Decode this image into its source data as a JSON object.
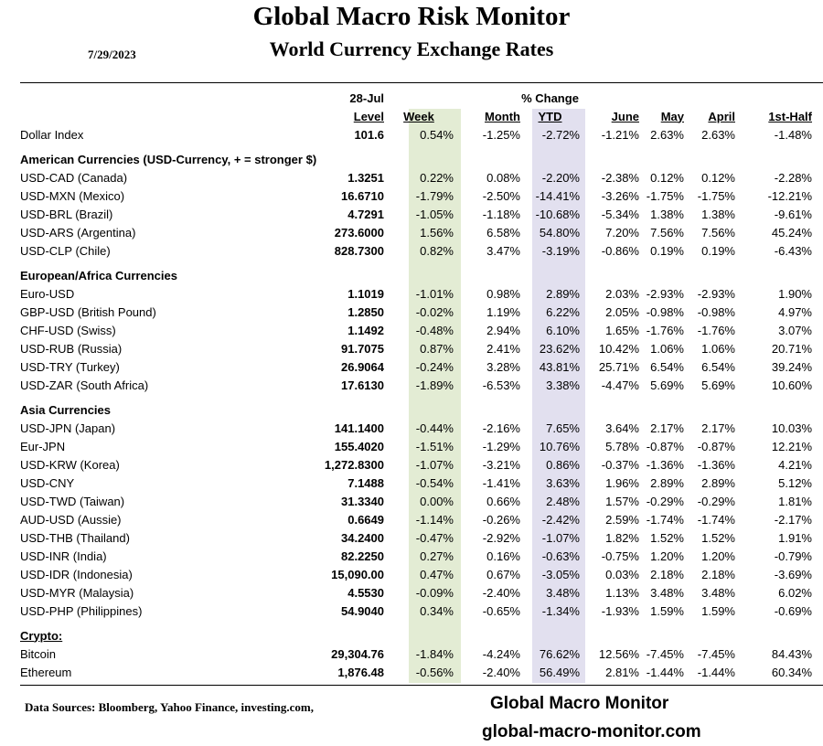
{
  "header": {
    "title": "Global Macro Risk Monitor",
    "subtitle": "World Currency Exchange Rates",
    "date": "7/29/2023"
  },
  "columns": {
    "level_date": "28-Jul",
    "change_label": "% Change",
    "level": "Level",
    "week": "Week",
    "month": "Month",
    "ytd": "YTD",
    "june": "June",
    "may": "May",
    "april": "April",
    "first_half": "1st-Half"
  },
  "dollar_index": {
    "name": "Dollar Index",
    "values": [
      "101.6",
      "0.54%",
      "-1.25%",
      "-2.72%",
      "-1.21%",
      "2.63%",
      "2.63%",
      "-1.48%"
    ]
  },
  "sections": [
    {
      "title": "American Currencies (USD-Currency, + = stronger $)",
      "rows": [
        {
          "name": "USD-CAD (Canada)",
          "values": [
            "1.3251",
            "0.22%",
            "0.08%",
            "-2.20%",
            "-2.38%",
            "0.12%",
            "0.12%",
            "-2.28%"
          ]
        },
        {
          "name": "USD-MXN  (Mexico)",
          "values": [
            "16.6710",
            "-1.79%",
            "-2.50%",
            "-14.41%",
            "-3.26%",
            "-1.75%",
            "-1.75%",
            "-12.21%"
          ]
        },
        {
          "name": "USD-BRL (Brazil)",
          "values": [
            "4.7291",
            "-1.05%",
            "-1.18%",
            "-10.68%",
            "-5.34%",
            "1.38%",
            "1.38%",
            "-9.61%"
          ]
        },
        {
          "name": "USD-ARS (Argentina)",
          "values": [
            "273.6000",
            "1.56%",
            "6.58%",
            "54.80%",
            "7.20%",
            "7.56%",
            "7.56%",
            "45.24%"
          ]
        },
        {
          "name": "USD-CLP (Chile)",
          "values": [
            "828.7300",
            "0.82%",
            "3.47%",
            "-3.19%",
            "-0.86%",
            "0.19%",
            "0.19%",
            "-6.43%"
          ]
        }
      ]
    },
    {
      "title": "European/Africa Currencies",
      "rows": [
        {
          "name": "Euro-USD",
          "values": [
            "1.1019",
            "-1.01%",
            "0.98%",
            "2.89%",
            "2.03%",
            "-2.93%",
            "-2.93%",
            "1.90%"
          ]
        },
        {
          "name": "GBP-USD (British Pound)",
          "values": [
            "1.2850",
            "-0.02%",
            "1.19%",
            "6.22%",
            "2.05%",
            "-0.98%",
            "-0.98%",
            "4.97%"
          ]
        },
        {
          "name": "CHF-USD (Swiss)",
          "values": [
            "1.1492",
            "-0.48%",
            "2.94%",
            "6.10%",
            "1.65%",
            "-1.76%",
            "-1.76%",
            "3.07%"
          ]
        },
        {
          "name": "USD-RUB (Russia)",
          "values": [
            "91.7075",
            "0.87%",
            "2.41%",
            "23.62%",
            "10.42%",
            "1.06%",
            "1.06%",
            "20.71%"
          ]
        },
        {
          "name": "USD-TRY (Turkey)",
          "values": [
            "26.9064",
            "-0.24%",
            "3.28%",
            "43.81%",
            "25.71%",
            "6.54%",
            "6.54%",
            "39.24%"
          ]
        },
        {
          "name": "USD-ZAR (South Africa)",
          "values": [
            "17.6130",
            "-1.89%",
            "-6.53%",
            "3.38%",
            "-4.47%",
            "5.69%",
            "5.69%",
            "10.60%"
          ]
        }
      ]
    },
    {
      "title": "Asia Currencies",
      "rows": [
        {
          "name": "USD-JPN (Japan)",
          "values": [
            "141.1400",
            "-0.44%",
            "-2.16%",
            "7.65%",
            "3.64%",
            "2.17%",
            "2.17%",
            "10.03%"
          ]
        },
        {
          "name": "Eur-JPN",
          "values": [
            "155.4020",
            "-1.51%",
            "-1.29%",
            "10.76%",
            "5.78%",
            "-0.87%",
            "-0.87%",
            "12.21%"
          ]
        },
        {
          "name": "USD-KRW (Korea)",
          "values": [
            "1,272.8300",
            "-1.07%",
            "-3.21%",
            "0.86%",
            "-0.37%",
            "-1.36%",
            "-1.36%",
            "4.21%"
          ]
        },
        {
          "name": "USD-CNY",
          "values": [
            "7.1488",
            "-0.54%",
            "-1.41%",
            "3.63%",
            "1.96%",
            "2.89%",
            "2.89%",
            "5.12%"
          ]
        },
        {
          "name": "USD-TWD (Taiwan)",
          "values": [
            "31.3340",
            "0.00%",
            "0.66%",
            "2.48%",
            "1.57%",
            "-0.29%",
            "-0.29%",
            "1.81%"
          ]
        },
        {
          "name": "AUD-USD (Aussie)",
          "values": [
            "0.6649",
            "-1.14%",
            "-0.26%",
            "-2.42%",
            "2.59%",
            "-1.74%",
            "-1.74%",
            "-2.17%"
          ]
        },
        {
          "name": "USD-THB  (Thailand)",
          "values": [
            "34.2400",
            "-0.47%",
            "-2.92%",
            "-1.07%",
            "1.82%",
            "1.52%",
            "1.52%",
            "1.91%"
          ]
        },
        {
          "name": "USD-INR (India)",
          "values": [
            "82.2250",
            "0.27%",
            "0.16%",
            "-0.63%",
            "-0.75%",
            "1.20%",
            "1.20%",
            "-0.79%"
          ]
        },
        {
          "name": "USD-IDR (Indonesia)",
          "values": [
            "15,090.00",
            "0.47%",
            "0.67%",
            "-3.05%",
            "0.03%",
            "2.18%",
            "2.18%",
            "-3.69%"
          ]
        },
        {
          "name": "USD-MYR (Malaysia)",
          "values": [
            "4.5530",
            "-0.09%",
            "-2.40%",
            "3.48%",
            "1.13%",
            "3.48%",
            "3.48%",
            "6.02%"
          ]
        },
        {
          "name": "USD-PHP (Philippines)",
          "values": [
            "54.9040",
            "0.34%",
            "-0.65%",
            "-1.34%",
            "-1.93%",
            "1.59%",
            "1.59%",
            "-0.69%"
          ]
        }
      ]
    },
    {
      "title": "Crypto:",
      "rows": [
        {
          "name": "Bitcoin",
          "values": [
            "29,304.76",
            "-1.84%",
            "-4.24%",
            "76.62%",
            "12.56%",
            "-7.45%",
            "-7.45%",
            "84.43%"
          ]
        },
        {
          "name": "Ethereum",
          "values": [
            "1,876.48",
            "-0.56%",
            "-2.40%",
            "56.49%",
            "2.81%",
            "-1.44%",
            "-1.44%",
            "60.34%"
          ]
        }
      ]
    }
  ],
  "footer": {
    "sources": "Data Sources:  Bloomberg,  Yahoo Finance, investing.com,",
    "brand": "Global Macro Monitor",
    "url": "global-macro-monitor.com"
  }
}
